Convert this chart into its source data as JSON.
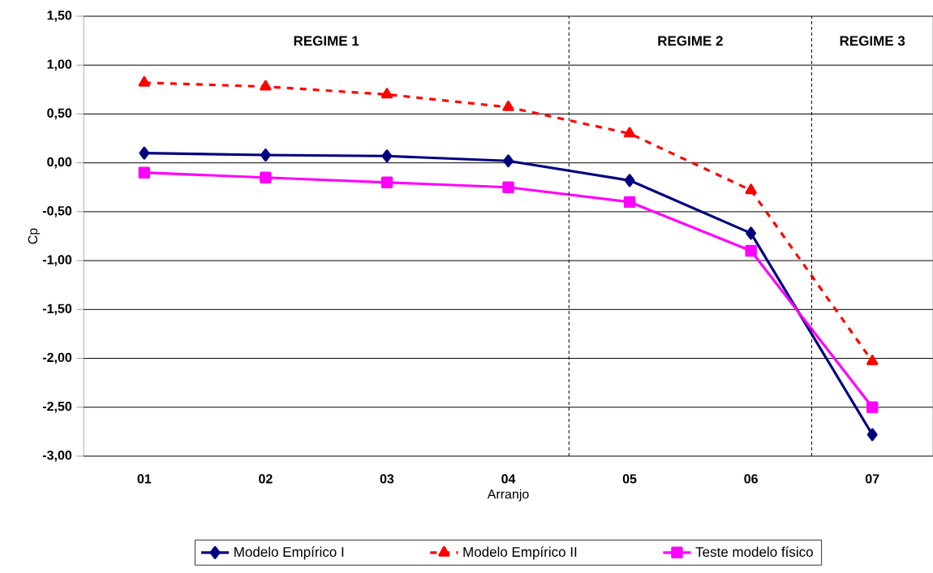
{
  "chart_data": {
    "type": "line",
    "xlabel": "Arranjo",
    "ylabel": "Cp",
    "categories": [
      "01",
      "02",
      "03",
      "04",
      "05",
      "06",
      "07"
    ],
    "series": [
      {
        "name": "Modelo Empírico I",
        "color": "#000080",
        "marker": "diamond",
        "line_style": "solid",
        "values": [
          0.1,
          0.08,
          0.07,
          0.02,
          -0.18,
          -0.72,
          -2.78
        ]
      },
      {
        "name": "Modelo Empírico II",
        "color": "#ff0000",
        "marker": "triangle",
        "line_style": "dashed",
        "values": [
          0.82,
          0.78,
          0.7,
          0.57,
          0.3,
          -0.28,
          -2.03
        ]
      },
      {
        "name": "Teste modelo físico",
        "color": "#ff00ff",
        "marker": "square",
        "line_style": "solid",
        "values": [
          -0.1,
          -0.15,
          -0.2,
          -0.25,
          -0.4,
          -0.9,
          -2.5
        ]
      }
    ],
    "ylim": [
      -3.0,
      1.5
    ],
    "yticks": [
      {
        "value": -3.0,
        "label": "-3,00"
      },
      {
        "value": -2.5,
        "label": "-2,50"
      },
      {
        "value": -2.0,
        "label": "-2,00"
      },
      {
        "value": -1.5,
        "label": "-1,50"
      },
      {
        "value": -1.0,
        "label": "-1,00"
      },
      {
        "value": -0.5,
        "label": "-0,50"
      },
      {
        "value": 0.0,
        "label": "0,00"
      },
      {
        "value": 0.5,
        "label": "0,50"
      },
      {
        "value": 1.0,
        "label": "1,00"
      },
      {
        "value": 1.5,
        "label": "1,50"
      }
    ],
    "annotations": [
      "REGIME 1",
      "REGIME 2",
      "REGIME 3"
    ],
    "grid": "y",
    "legend": "bottom"
  }
}
